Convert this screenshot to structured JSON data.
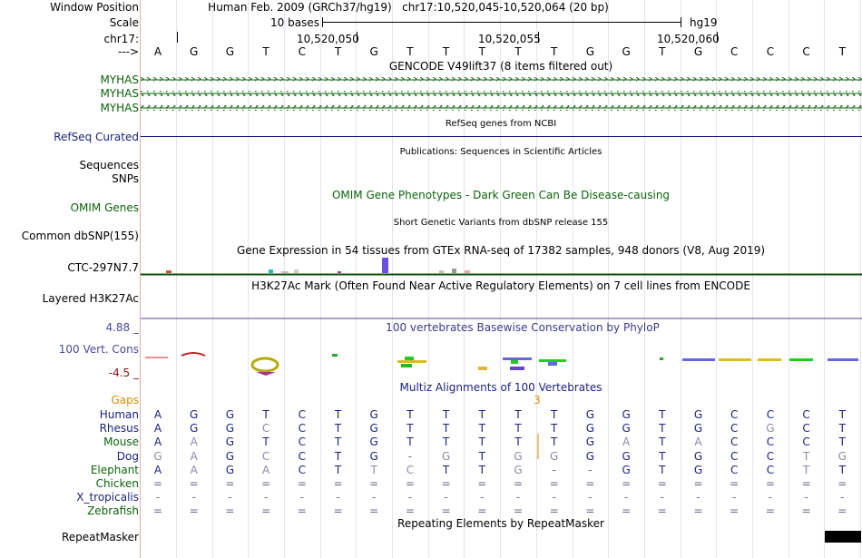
{
  "header": {
    "window_position_label": "Window Position",
    "assembly": "Human Feb. 2009 (GRCh37/hg19)",
    "position": "chr17:10,520,045-10,520,064 (20 bp)",
    "scale_label": "Scale",
    "scale_text": "10 bases",
    "scale_db": "hg19",
    "chrom_label": "chr17:",
    "coords": [
      "10,520,050",
      "10,520,055",
      "10,520,060"
    ],
    "strand_label": "--->"
  },
  "base_sequence": [
    "A",
    "G",
    "G",
    "T",
    "C",
    "T",
    "G",
    "T",
    "T",
    "T",
    "T",
    "T",
    "G",
    "G",
    "T",
    "G",
    "C",
    "C",
    "C",
    "T"
  ],
  "tracks": {
    "gencode": {
      "title": "GENCODE V49lift37 (8 items filtered out)",
      "items": [
        "MYHAS",
        "MYHAS",
        "MYHAS"
      ]
    },
    "refseq": {
      "title": "RefSeq genes from NCBI",
      "label": "RefSeq Curated"
    },
    "publications": {
      "title": "Publications: Sequences in Scientific Articles",
      "labels": [
        "Sequences",
        "SNPs"
      ]
    },
    "omim": {
      "title": "OMIM Gene Phenotypes - Dark Green Can Be Disease-causing",
      "label": "OMIM Genes"
    },
    "dbsnp": {
      "title": "Short Genetic Variants from dbSNP release 155",
      "label": "Common dbSNP(155)"
    },
    "gtex": {
      "title": "Gene Expression in 54 tissues from GTEx RNA-seq of 17382 samples, 948 donors (V8, Aug 2019)",
      "label": "CTC-297N7.7"
    },
    "h3k27ac": {
      "title": "H3K27Ac Mark (Often Found Near Active Regulatory Elements) on 7 cell lines from ENCODE",
      "label": "Layered H3K27Ac"
    },
    "phylop": {
      "title": "100 vertebrates Basewise Conservation by PhyloP",
      "label": "100 Vert. Cons",
      "max": "4.88 _",
      "min": "-4.5 _"
    },
    "multiz": {
      "title": "Multiz Alignments of 100 Vertebrates",
      "gaps_label": "Gaps",
      "gap_count": "3",
      "species": [
        {
          "name": "Human",
          "seq": [
            "A",
            "G",
            "G",
            "T",
            "C",
            "T",
            "G",
            "T",
            "T",
            "T",
            "T",
            "T",
            "G",
            "G",
            "T",
            "G",
            "C",
            "C",
            "C",
            "T"
          ]
        },
        {
          "name": "Rhesus",
          "seq": [
            "A",
            "G",
            "G",
            "C",
            "C",
            "T",
            "G",
            "T",
            "T",
            "T",
            "T",
            "T",
            "G",
            "G",
            "T",
            "G",
            "C",
            "G",
            "C",
            "T"
          ]
        },
        {
          "name": "Mouse",
          "seq": [
            "A",
            "A",
            "G",
            "T",
            "C",
            "T",
            "G",
            "T",
            "T",
            "T",
            "T",
            "T",
            "G",
            "A",
            "T",
            "A",
            "C",
            "C",
            "C",
            "T"
          ]
        },
        {
          "name": "Dog",
          "seq": [
            "G",
            "A",
            "G",
            "C",
            "C",
            "T",
            "G",
            "-",
            "G",
            "T",
            "G",
            "G",
            "G",
            "G",
            "T",
            "G",
            "C",
            "C",
            "T",
            "G"
          ]
        },
        {
          "name": "Elephant",
          "seq": [
            "A",
            "A",
            "G",
            "A",
            "C",
            "T",
            "T",
            "C",
            "T",
            "T",
            "G",
            "-",
            "-",
            "G",
            "T",
            "G",
            "C",
            "C",
            "T",
            "T"
          ]
        },
        {
          "name": "Chicken",
          "seq": [
            "=",
            "=",
            "=",
            "=",
            "=",
            "=",
            "=",
            "=",
            "=",
            "=",
            "=",
            "=",
            "=",
            "=",
            "=",
            "=",
            "=",
            "=",
            "=",
            "="
          ]
        },
        {
          "name": "X_tropicalis",
          "seq": [
            "-",
            "-",
            "-",
            "-",
            "-",
            "-",
            "-",
            "-",
            "-",
            "-",
            "-",
            "-",
            "-",
            "-",
            "-",
            "-",
            "-",
            "-",
            "-",
            "-"
          ]
        },
        {
          "name": "Zebrafish",
          "seq": [
            "=",
            "=",
            "=",
            "=",
            "=",
            "=",
            "=",
            "=",
            "=",
            "=",
            "=",
            "=",
            "=",
            "=",
            "=",
            "=",
            "=",
            "=",
            "=",
            "="
          ]
        }
      ]
    },
    "repeatmasker": {
      "title": "Repeating Elements by RepeatMasker",
      "label": "RepeatMasker"
    }
  },
  "colors": {
    "label_blue": "#1a237e",
    "gencode_green": "#0c640c",
    "omim_green": "#0c640c",
    "refseq_navy": "#0c0c78",
    "gaps_orange": "#e08a00",
    "phylop_label": "#4a4a9c",
    "phylop_min": "#8a1010",
    "h3k27ac_purple": "#6a3ea0"
  }
}
